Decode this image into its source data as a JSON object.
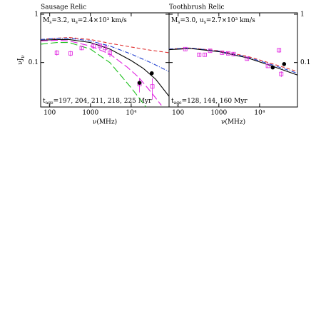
{
  "chart_data": [
    {
      "type": "line",
      "title": "Sausage Relic",
      "annotations": [
        [
          {
            "text": "M"
          },
          {
            "sub": "s"
          },
          {
            "text": "=3.2, u"
          },
          {
            "sub": "s"
          },
          {
            "text": "=2.4×10³ km/s"
          }
        ],
        [
          {
            "text": "t"
          },
          {
            "sub": "age"
          },
          {
            "text": "=197, 204, 211, 218, 225 Myr"
          }
        ]
      ],
      "xlabel": "ν(MHz)",
      "ylabel": "νJ",
      "ylabel_sub": "ν",
      "xlog": true,
      "ylog": true,
      "ytick_side": "left",
      "xlim": [
        60,
        85000
      ],
      "ylim": [
        0.012,
        1.07
      ],
      "xticks": [
        100,
        1000,
        {
          "value": 10000,
          "label": "10⁴"
        }
      ],
      "yticks": [
        1,
        0.1
      ],
      "series": [
        {
          "color": "#e03030",
          "dash": "dashed",
          "x": [
            60,
            150,
            300,
            1000,
            3000,
            10000,
            30000,
            85000
          ],
          "values": [
            0.3,
            0.32,
            0.33,
            0.3,
            0.25,
            0.21,
            0.18,
            0.16
          ]
        },
        {
          "color": "#2040d0",
          "dash": "dash-dot",
          "x": [
            60,
            150,
            300,
            1000,
            3000,
            10000,
            30000,
            85000
          ],
          "values": [
            0.3,
            0.32,
            0.32,
            0.28,
            0.22,
            0.15,
            0.1,
            0.065
          ]
        },
        {
          "color": "#000000",
          "dash": "solid",
          "x": [
            60,
            150,
            300,
            1000,
            3000,
            10000,
            20000,
            40000,
            85000
          ],
          "values": [
            0.29,
            0.3,
            0.3,
            0.26,
            0.19,
            0.11,
            0.075,
            0.045,
            0.02
          ]
        },
        {
          "color": "#e020e0",
          "dash": "long-dash",
          "x": [
            60,
            150,
            300,
            1000,
            3000,
            8000,
            15000,
            30000,
            55000
          ],
          "values": [
            0.28,
            0.29,
            0.28,
            0.22,
            0.15,
            0.08,
            0.05,
            0.025,
            0.013
          ]
        },
        {
          "color": "#20c020",
          "dash": "long-dash",
          "x": [
            60,
            150,
            300,
            1000,
            3000,
            6000,
            10000,
            16000,
            23000
          ],
          "values": [
            0.24,
            0.26,
            0.26,
            0.19,
            0.1,
            0.05,
            0.03,
            0.018,
            0.012
          ]
        },
        {
          "color": "#e020e0",
          "marker": "open-square",
          "x": [
            150,
            325,
            610,
            1200,
            1700,
            2300,
            3000,
            16000,
            33000
          ],
          "values": [
            0.16,
            0.155,
            0.2,
            0.22,
            0.22,
            0.2,
            0.16,
            0.036,
            0.032
          ],
          "errors": [
            0.02,
            0.02,
            0.02,
            0.03,
            0.03,
            0.03,
            0.03,
            0.012,
            0.015
          ]
        },
        {
          "color": "#000000",
          "marker": "filled-circle",
          "x": [
            16000,
            32000
          ],
          "values": [
            0.038,
            0.06
          ]
        }
      ]
    },
    {
      "type": "line",
      "title": "Toothbrush Relic",
      "annotations": [
        [
          {
            "text": "M"
          },
          {
            "sub": "s"
          },
          {
            "text": "=3.0, u"
          },
          {
            "sub": "s"
          },
          {
            "text": "=2.7×10³ km/s"
          }
        ],
        [
          {
            "text": "t"
          },
          {
            "sub": "age"
          },
          {
            "text": "=128, 144, 160 Myr"
          }
        ]
      ],
      "xlabel": "ν(MHz)",
      "xlog": true,
      "ylog": true,
      "ytick_side": "right",
      "xlim": [
        60,
        85000
      ],
      "ylim": [
        0.012,
        1.07
      ],
      "xticks": [
        100,
        1000,
        {
          "value": 10000,
          "label": "10⁴"
        }
      ],
      "yticks": [
        1,
        0.1
      ],
      "series": [
        {
          "color": "#e03030",
          "dash": "dashed",
          "x": [
            60,
            200,
            1000,
            5000,
            20000,
            85000
          ],
          "values": [
            0.19,
            0.2,
            0.175,
            0.135,
            0.095,
            0.065
          ]
        },
        {
          "color": "#2040d0",
          "dash": "dash-dot",
          "x": [
            60,
            200,
            1000,
            5000,
            20000,
            85000
          ],
          "values": [
            0.19,
            0.2,
            0.172,
            0.13,
            0.09,
            0.06
          ]
        },
        {
          "color": "#000000",
          "dash": "solid",
          "x": [
            60,
            200,
            1000,
            5000,
            20000,
            85000
          ],
          "values": [
            0.185,
            0.195,
            0.168,
            0.125,
            0.085,
            0.055
          ]
        },
        {
          "color": "#e020e0",
          "marker": "open-square",
          "x": [
            150,
            330,
            450,
            610,
            1200,
            1700,
            2300,
            4900,
            16000,
            30000,
            34000
          ],
          "values": [
            0.19,
            0.145,
            0.145,
            0.175,
            0.16,
            0.155,
            0.15,
            0.12,
            0.085,
            0.18,
            0.058
          ],
          "errors": [
            0.015,
            0.012,
            0.012,
            0.015,
            0.012,
            0.012,
            0.012,
            0.01,
            0.008,
            0.02,
            0.008
          ]
        },
        {
          "color": "#000000",
          "marker": "filled-circle",
          "x": [
            21000,
            40000
          ],
          "values": [
            0.079,
            0.093
          ]
        }
      ]
    }
  ]
}
